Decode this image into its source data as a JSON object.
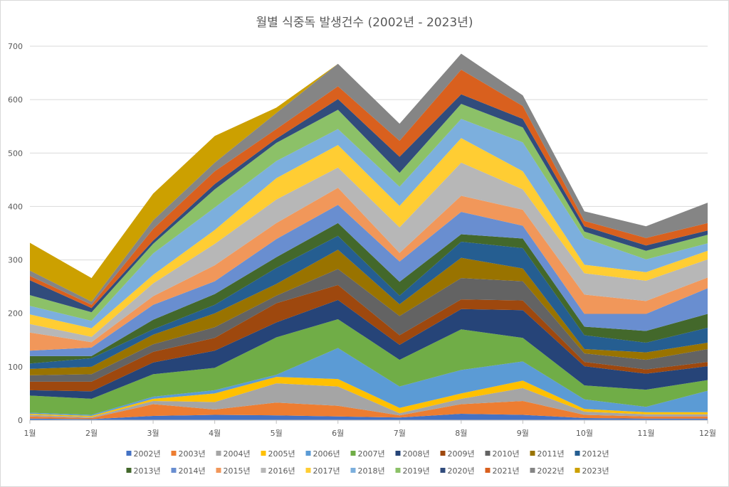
{
  "chart_data": {
    "type": "area",
    "stacked": true,
    "title": "월별 식중독 발생건수 (2002년 - 2023년)",
    "xlabel": "",
    "ylabel": "",
    "categories": [
      "1월",
      "2월",
      "3월",
      "4월",
      "5월",
      "6월",
      "7월",
      "8월",
      "9월",
      "10월",
      "11월",
      "12월"
    ],
    "ylim": [
      0,
      700
    ],
    "yticks": [
      0,
      100,
      200,
      300,
      400,
      500,
      600,
      700
    ],
    "grid": true,
    "legend_position": "bottom",
    "series": [
      {
        "name": "2002년",
        "color": "#4472C4",
        "values": [
          3,
          2,
          8,
          10,
          9,
          7,
          5,
          12,
          10,
          4,
          3,
          3
        ]
      },
      {
        "name": "2003년",
        "color": "#ED7D31",
        "values": [
          4,
          2,
          22,
          10,
          24,
          20,
          4,
          18,
          26,
          6,
          4,
          4
        ]
      },
      {
        "name": "2004년",
        "color": "#A5A5A5",
        "values": [
          3,
          2,
          6,
          14,
          36,
          36,
          4,
          10,
          24,
          6,
          4,
          4
        ]
      },
      {
        "name": "2005년",
        "color": "#FFC000",
        "values": [
          2,
          2,
          4,
          16,
          12,
          14,
          10,
          10,
          14,
          5,
          4,
          4
        ]
      },
      {
        "name": "2006년",
        "color": "#5B9BD5",
        "values": [
          2,
          2,
          4,
          6,
          4,
          58,
          40,
          44,
          36,
          18,
          10,
          40
        ]
      },
      {
        "name": "2007년",
        "color": "#70AD47",
        "values": [
          32,
          30,
          42,
          42,
          70,
          54,
          50,
          76,
          44,
          26,
          32,
          20
        ]
      },
      {
        "name": "2008년",
        "color": "#264478",
        "values": [
          10,
          14,
          22,
          32,
          28,
          36,
          28,
          38,
          52,
          36,
          30,
          26
        ]
      },
      {
        "name": "2009년",
        "color": "#9E480E",
        "values": [
          16,
          18,
          20,
          24,
          36,
          28,
          18,
          18,
          18,
          8,
          8,
          8
        ]
      },
      {
        "name": "2010년",
        "color": "#636363",
        "values": [
          12,
          14,
          14,
          20,
          14,
          30,
          36,
          40,
          36,
          16,
          18,
          24
        ]
      },
      {
        "name": "2011년",
        "color": "#997300",
        "values": [
          12,
          14,
          18,
          26,
          22,
          36,
          22,
          38,
          24,
          8,
          14,
          12
        ]
      },
      {
        "name": "2012년",
        "color": "#255E91",
        "values": [
          10,
          16,
          10,
          16,
          30,
          26,
          16,
          30,
          38,
          26,
          18,
          28
        ]
      },
      {
        "name": "2013년",
        "color": "#43682B",
        "values": [
          14,
          4,
          18,
          20,
          20,
          24,
          26,
          14,
          18,
          16,
          22,
          26
        ]
      },
      {
        "name": "2014년",
        "color": "#698ED0",
        "values": [
          10,
          16,
          28,
          24,
          34,
          34,
          38,
          42,
          24,
          24,
          32,
          48
        ]
      },
      {
        "name": "2015년",
        "color": "#F1975A",
        "values": [
          34,
          10,
          16,
          30,
          30,
          32,
          16,
          30,
          30,
          36,
          24,
          20
        ]
      },
      {
        "name": "2016년",
        "color": "#B7B7B7",
        "values": [
          16,
          10,
          24,
          40,
          44,
          38,
          48,
          62,
          38,
          40,
          38,
          34
        ]
      },
      {
        "name": "2017년",
        "color": "#FFCD33",
        "values": [
          18,
          16,
          16,
          26,
          40,
          42,
          40,
          46,
          34,
          16,
          16,
          16
        ]
      },
      {
        "name": "2018년",
        "color": "#7CAFDD",
        "values": [
          16,
          14,
          40,
          42,
          32,
          30,
          36,
          36,
          54,
          50,
          24,
          14
        ]
      },
      {
        "name": "2019년",
        "color": "#8CC168",
        "values": [
          20,
          16,
          18,
          34,
          34,
          36,
          26,
          28,
          28,
          12,
          16,
          16
        ]
      },
      {
        "name": "2020년",
        "color": "#314C7C",
        "values": [
          28,
          8,
          6,
          10,
          8,
          20,
          30,
          18,
          16,
          10,
          10,
          8
        ]
      },
      {
        "name": "2021년",
        "color": "#D9601E",
        "values": [
          8,
          6,
          22,
          24,
          18,
          24,
          30,
          46,
          24,
          10,
          14,
          14
        ]
      },
      {
        "name": "2022년",
        "color": "#858585",
        "values": [
          10,
          6,
          16,
          16,
          30,
          42,
          32,
          30,
          20,
          18,
          22,
          38
        ]
      },
      {
        "name": "2023년",
        "color": "#CCA000",
        "values": [
          52,
          44,
          50,
          50,
          10,
          0,
          0,
          0,
          0,
          0,
          0,
          0
        ]
      }
    ]
  }
}
